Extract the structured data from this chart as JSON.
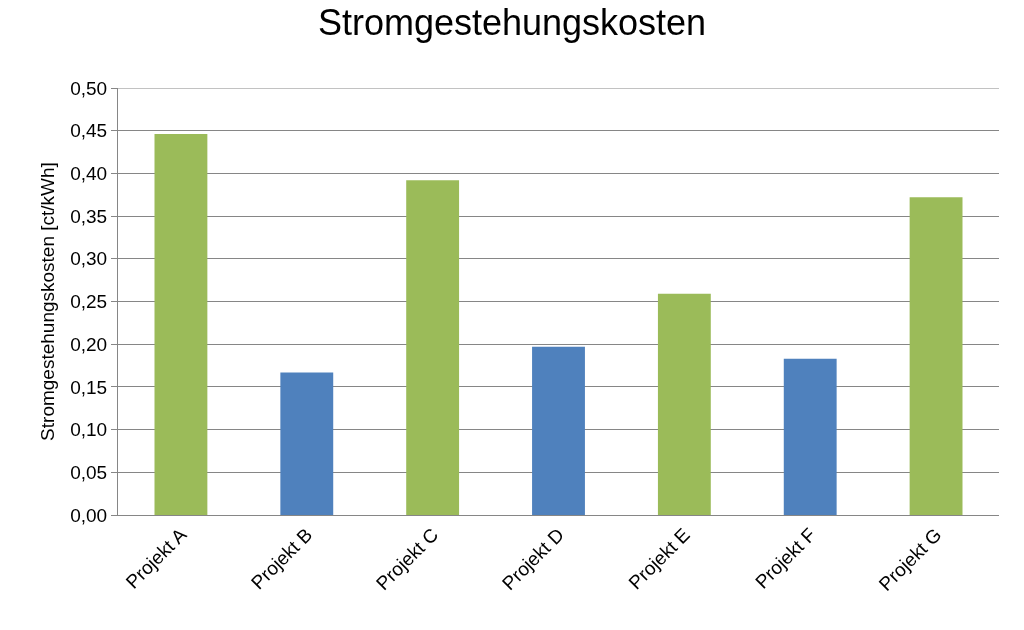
{
  "chart_data": {
    "type": "bar",
    "title": "Stromgestehungskosten",
    "ylabel": "Stromgestehungskosten [ct/kWh]",
    "categories": [
      "Projekt A",
      "Projekt B",
      "Projekt C",
      "Projekt D",
      "Projekt E",
      "Projekt F",
      "Projekt G"
    ],
    "values": [
      0.446,
      0.167,
      0.392,
      0.197,
      0.259,
      0.183,
      0.372
    ],
    "colors": [
      "#9bbb59",
      "#4f81bd",
      "#9bbb59",
      "#4f81bd",
      "#9bbb59",
      "#4f81bd",
      "#9bbb59"
    ],
    "ylim": [
      0,
      0.5
    ],
    "yticks": [
      {
        "value": 0,
        "label": "0,00"
      },
      {
        "value": 0.05,
        "label": "0,05"
      },
      {
        "value": 0.1,
        "label": "0,10"
      },
      {
        "value": 0.15,
        "label": "0,15"
      },
      {
        "value": 0.2,
        "label": "0,20"
      },
      {
        "value": 0.25,
        "label": "0,25"
      },
      {
        "value": 0.3,
        "label": "0,30"
      },
      {
        "value": 0.35,
        "label": "0,35"
      },
      {
        "value": 0.4,
        "label": "0,40"
      },
      {
        "value": 0.45,
        "label": "0,45"
      },
      {
        "value": 0.5,
        "label": "0,50"
      }
    ],
    "grid": "y"
  }
}
